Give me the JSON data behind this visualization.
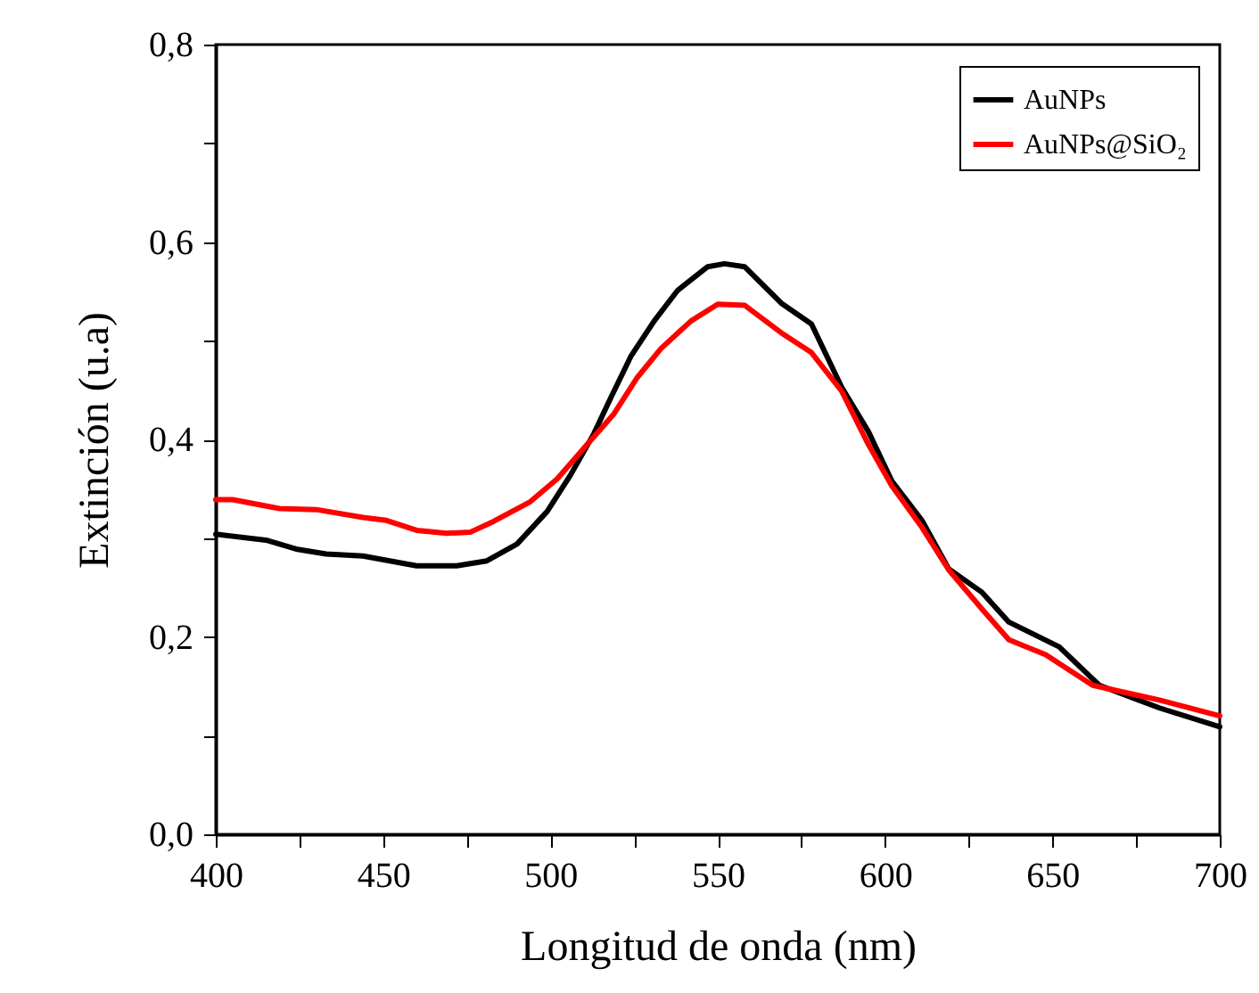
{
  "chart_data": {
    "type": "line",
    "xlabel": "Longitud de onda (nm)",
    "ylabel": "Extinción (u.a)",
    "xlim": [
      400,
      700
    ],
    "ylim": [
      0,
      0.8
    ],
    "xticks": [
      400,
      {
        "value": 425,
        "label": null
      },
      450,
      {
        "value": 475,
        "label": null
      },
      500,
      {
        "value": 525,
        "label": null
      },
      550,
      {
        "value": 575,
        "label": null
      },
      600,
      {
        "value": 625,
        "label": null
      },
      650,
      {
        "value": 675,
        "label": null
      },
      700
    ],
    "yticks": [
      {
        "value": 0,
        "label": "0,0"
      },
      {
        "value": 0.1,
        "label": null
      },
      {
        "value": 0.2,
        "label": "0,2"
      },
      {
        "value": 0.3,
        "label": null
      },
      {
        "value": 0.4,
        "label": "0,4"
      },
      {
        "value": 0.5,
        "label": null
      },
      {
        "value": 0.6,
        "label": "0,6"
      },
      {
        "value": 0.7,
        "label": null
      },
      {
        "value": 0.8,
        "label": "0,8"
      }
    ],
    "grid": false,
    "legend": "top right",
    "line_style": "solid",
    "series": [
      {
        "name": "AuNPs",
        "color": "#000000",
        "x": [
          400,
          415,
          424,
          433,
          444,
          460,
          472,
          481,
          490,
          499,
          506,
          513,
          518,
          524,
          531,
          538,
          547,
          552,
          558,
          569,
          578,
          587,
          595,
          602,
          611,
          619,
          629,
          637,
          652,
          664,
          682,
          700
        ],
        "values": [
          0.304,
          0.298,
          0.289,
          0.284,
          0.282,
          0.272,
          0.272,
          0.277,
          0.294,
          0.327,
          0.364,
          0.406,
          0.442,
          0.484,
          0.52,
          0.551,
          0.575,
          0.578,
          0.575,
          0.538,
          0.517,
          0.453,
          0.408,
          0.358,
          0.318,
          0.269,
          0.245,
          0.215,
          0.19,
          0.151,
          0.128,
          0.109
        ]
      },
      {
        "name": "AuNPs@SiO₂",
        "color": "#ff0000",
        "x": [
          400,
          405,
          419,
          430,
          444,
          451,
          460,
          469,
          476,
          483,
          494,
          502,
          511,
          519,
          526,
          533,
          542,
          550,
          558,
          569,
          578,
          587,
          595,
          602,
          611,
          619,
          629,
          637,
          648,
          662,
          682,
          700
        ],
        "values": [
          0.339,
          0.339,
          0.33,
          0.329,
          0.321,
          0.318,
          0.308,
          0.305,
          0.306,
          0.317,
          0.337,
          0.36,
          0.395,
          0.426,
          0.463,
          0.492,
          0.52,
          0.537,
          0.536,
          0.508,
          0.488,
          0.449,
          0.395,
          0.353,
          0.311,
          0.268,
          0.228,
          0.197,
          0.182,
          0.151,
          0.136,
          0.12
        ]
      }
    ]
  }
}
